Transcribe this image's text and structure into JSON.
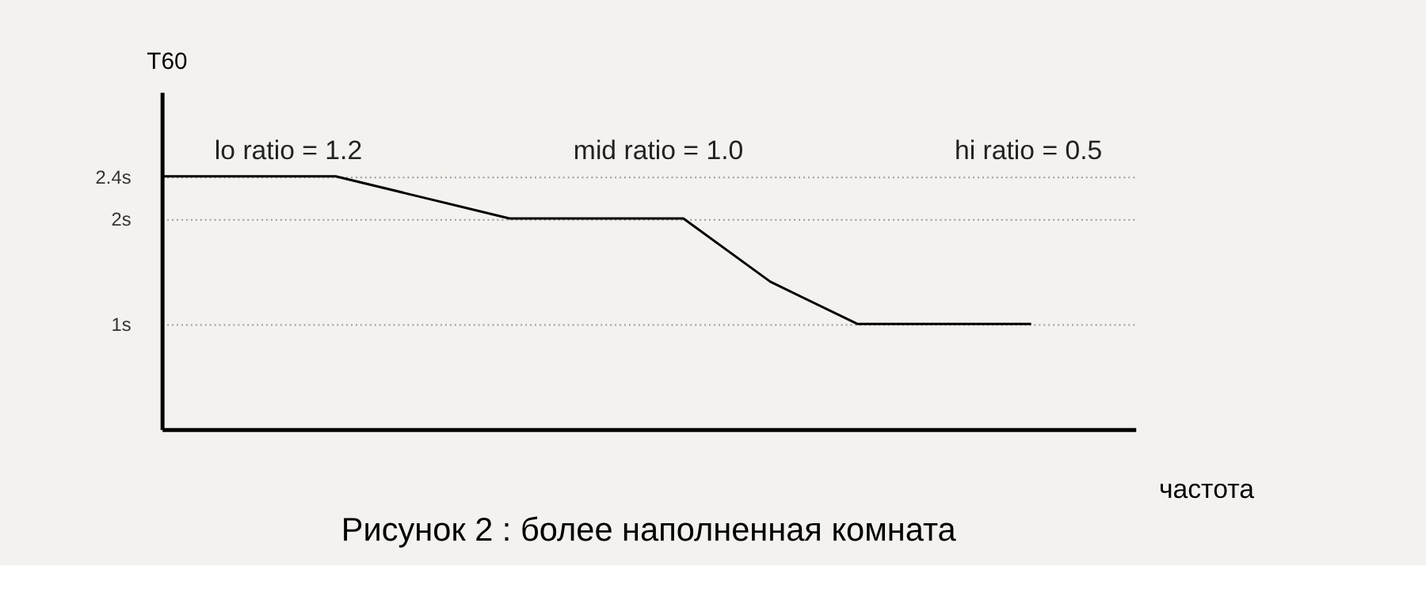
{
  "chart_data": {
    "type": "line",
    "title": "Рисунок 2 : более наполненная комната",
    "xlabel": "частота",
    "ylabel": "T60",
    "categories": [
      null,
      null,
      null,
      null,
      null,
      null,
      null,
      null,
      null,
      null,
      null
    ],
    "series": [
      {
        "color": "#000000",
        "values": [
          2.4,
          2.4,
          2.4,
          2.2,
          2.0,
          2.0,
          2.0,
          1.4,
          1.0,
          1.0,
          1.0
        ]
      }
    ],
    "ylim": [
      0,
      3.2
    ],
    "yticks": [
      {
        "value": 1,
        "label": "1s"
      },
      {
        "value": 2,
        "label": "2s"
      },
      {
        "value": 2.4,
        "label": "2.4s"
      }
    ],
    "grid": "y",
    "tick_labels": "y",
    "marker": "none",
    "line_style": "solid",
    "annotations": [
      "lo ratio =  1.2",
      "mid ratio = 1.0",
      "hi ratio = 0.5"
    ]
  }
}
